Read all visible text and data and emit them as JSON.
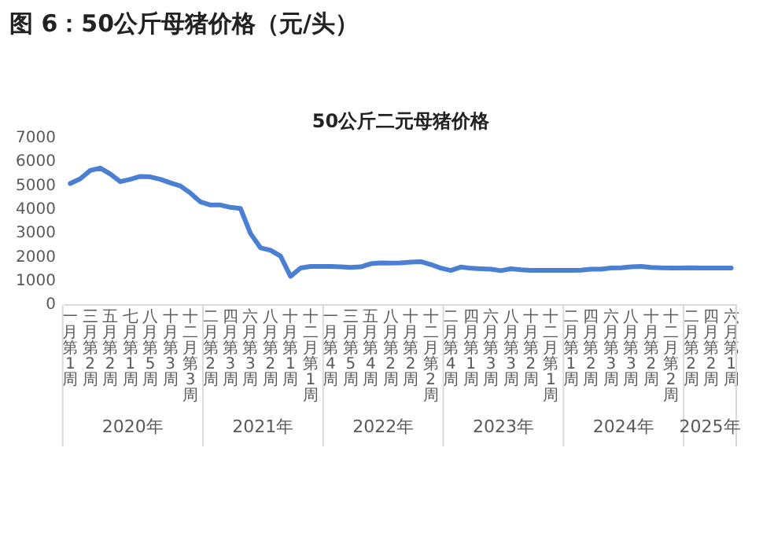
{
  "chart_data": {
    "type": "line",
    "title": "图 6：50公斤母猪价格（元/头）",
    "subtitle": "50公斤二元母猪价格",
    "categories": [
      "一月第1周",
      null,
      "三月第2周",
      null,
      "五月第2周",
      null,
      "七月第1周",
      null,
      "八月第5周",
      null,
      "十月第3周",
      null,
      "十二月第3周",
      null,
      "二月第2周",
      null,
      "四月第3周",
      null,
      "六月第3周",
      null,
      "八月第2周",
      null,
      "十月第1周",
      null,
      "十二月第1周",
      null,
      "一月第4周",
      null,
      "三月第5周",
      null,
      "五月第4周",
      null,
      "八月第2周",
      null,
      "十月第2周",
      null,
      "十二月第2周",
      null,
      "二月第4周",
      null,
      "四月第1周",
      null,
      "六月第3周",
      null,
      "八月第3周",
      null,
      "十月第2周",
      null,
      "十二月第1周",
      null,
      "二月第1周",
      null,
      "四月第2周",
      null,
      "六月第3周",
      null,
      "八月第3周",
      null,
      "十月第2周",
      null,
      "十二月第2周",
      null,
      "二月第2周",
      null,
      "四月第2周",
      null,
      "六月第1周"
    ],
    "series": [
      {
        "color": "#4a7fd4",
        "values": [
          5100,
          5300,
          5650,
          5750,
          5500,
          5180,
          5280,
          5400,
          5380,
          5280,
          5130,
          5000,
          4700,
          4330,
          4200,
          4200,
          4100,
          4050,
          3000,
          2400,
          2300,
          2050,
          1200,
          1550,
          1620,
          1620,
          1620,
          1600,
          1580,
          1600,
          1730,
          1770,
          1760,
          1770,
          1800,
          1820,
          1700,
          1550,
          1450,
          1590,
          1540,
          1520,
          1500,
          1440,
          1520,
          1480,
          1450,
          1450,
          1450,
          1450,
          1450,
          1460,
          1500,
          1500,
          1550,
          1560,
          1600,
          1620,
          1580,
          1560,
          1550,
          1550,
          1560,
          1550,
          1550,
          1550,
          1550
        ]
      }
    ],
    "ylim": [
      0,
      7000
    ],
    "yticks": [
      0,
      1000,
      2000,
      3000,
      4000,
      5000,
      6000,
      7000
    ],
    "grid": false,
    "legend": false,
    "marker": "none",
    "line_style": "solid",
    "annotations": [
      "2020年",
      "2021年",
      "2022年",
      "2023年",
      "2024年",
      "2025年"
    ]
  }
}
